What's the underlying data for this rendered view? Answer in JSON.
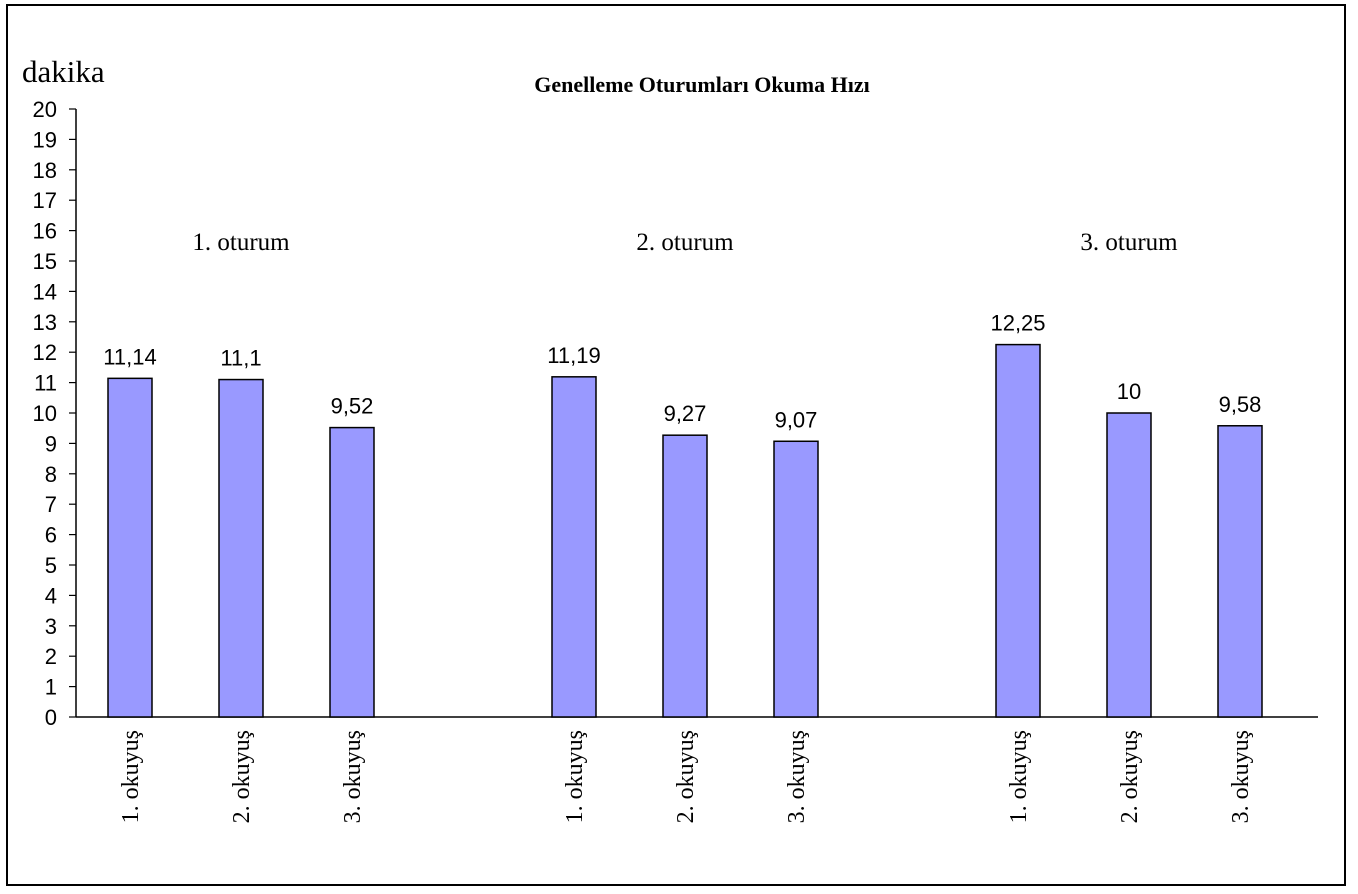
{
  "chart_data": {
    "type": "bar",
    "title": "Genelleme Oturumları Okuma Hızı",
    "ylabel": "dakika",
    "xlabel": "",
    "ylim": [
      0,
      20
    ],
    "yticks": [
      0,
      1,
      2,
      3,
      4,
      5,
      6,
      7,
      8,
      9,
      10,
      11,
      12,
      13,
      14,
      15,
      16,
      17,
      18,
      19,
      20
    ],
    "grid": false,
    "legend": "none",
    "bar_color": "#9999ff",
    "groups": [
      {
        "label": "1. oturum",
        "bars": [
          {
            "category": "1. okuyuş",
            "value": 11.14,
            "value_label": "11,14"
          },
          {
            "category": "2. okuyuş",
            "value": 11.1,
            "value_label": "11,1"
          },
          {
            "category": "3. okuyuş",
            "value": 9.52,
            "value_label": "9,52"
          }
        ]
      },
      {
        "label": "2. oturum",
        "bars": [
          {
            "category": "1. okuyuş",
            "value": 11.19,
            "value_label": "11,19"
          },
          {
            "category": "2. okuyuş",
            "value": 9.27,
            "value_label": "9,27"
          },
          {
            "category": "3. okuyuş",
            "value": 9.07,
            "value_label": "9,07"
          }
        ]
      },
      {
        "label": "3. oturum",
        "bars": [
          {
            "category": "1. okuyuş",
            "value": 12.25,
            "value_label": "12,25"
          },
          {
            "category": "2. okuyuş",
            "value": 10,
            "value_label": "10"
          },
          {
            "category": "3. okuyuş",
            "value": 9.58,
            "value_label": "9,58"
          }
        ]
      }
    ]
  }
}
